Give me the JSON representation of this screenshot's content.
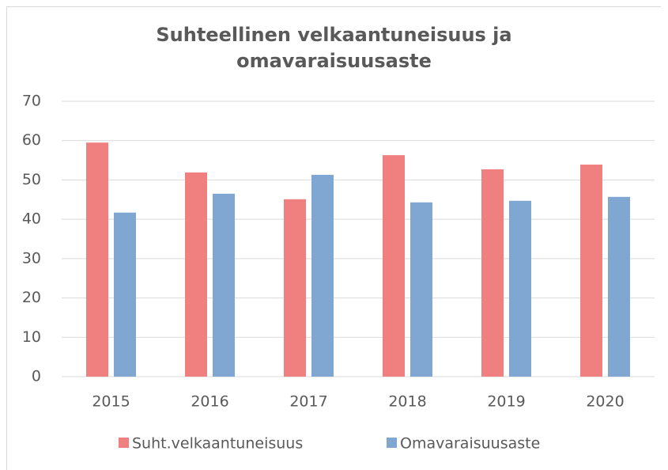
{
  "chart_data": {
    "type": "bar",
    "title": "Suhteellinen velkaantuneisuus ja omavaraisuusaste",
    "categories": [
      "2015",
      "2016",
      "2017",
      "2018",
      "2019",
      "2020"
    ],
    "series": [
      {
        "name": "Suht.velkaantuneisuus",
        "color": "#f08080",
        "values": [
          59.5,
          51.9,
          45.1,
          56.3,
          52.7,
          53.9
        ]
      },
      {
        "name": "Omavaraisuusaste",
        "color": "#7fa7d2",
        "values": [
          41.7,
          46.5,
          51.3,
          44.3,
          44.7,
          45.7
        ]
      }
    ],
    "ylim": [
      0,
      70
    ],
    "yticks": [
      0,
      10,
      20,
      30,
      40,
      50,
      60,
      70
    ],
    "grid": true,
    "legend": "bottom"
  }
}
